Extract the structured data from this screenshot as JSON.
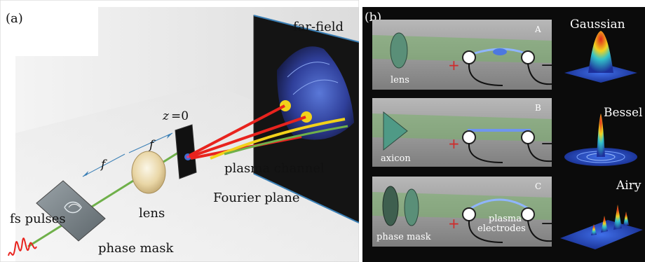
{
  "panel_a": {
    "tag": "(a)",
    "labels": {
      "far_field": "far-field",
      "z0_italic": "z",
      "z0_rest": "=0",
      "f_upper": "f",
      "f_lower": "f",
      "plasma_channel": "plasma channel",
      "fourier_plane": "Fourier plane",
      "fs_pulses": "fs pulses",
      "lens": "lens",
      "phase_mask": "phase mask"
    }
  },
  "panel_b": {
    "tag": "(b)",
    "rows": [
      {
        "letter": "A",
        "optic": "lens",
        "profile": "Gaussian"
      },
      {
        "letter": "B",
        "optic": "axicon",
        "profile": "Bessel"
      },
      {
        "letter": "C",
        "optic": "phase mask",
        "profile": "Airy",
        "plasma": "plasma",
        "electrodes": "electrodes"
      }
    ],
    "plus": "+",
    "minus": "−"
  },
  "colors": {
    "beam_red": "#e8231e",
    "beam_yellow": "#f2d21a",
    "beam_green": "#6fb04a",
    "screen_dark": "#111111",
    "screen_edge": "#3a7fb5",
    "panel_b_bg": "#0b0b0b"
  }
}
